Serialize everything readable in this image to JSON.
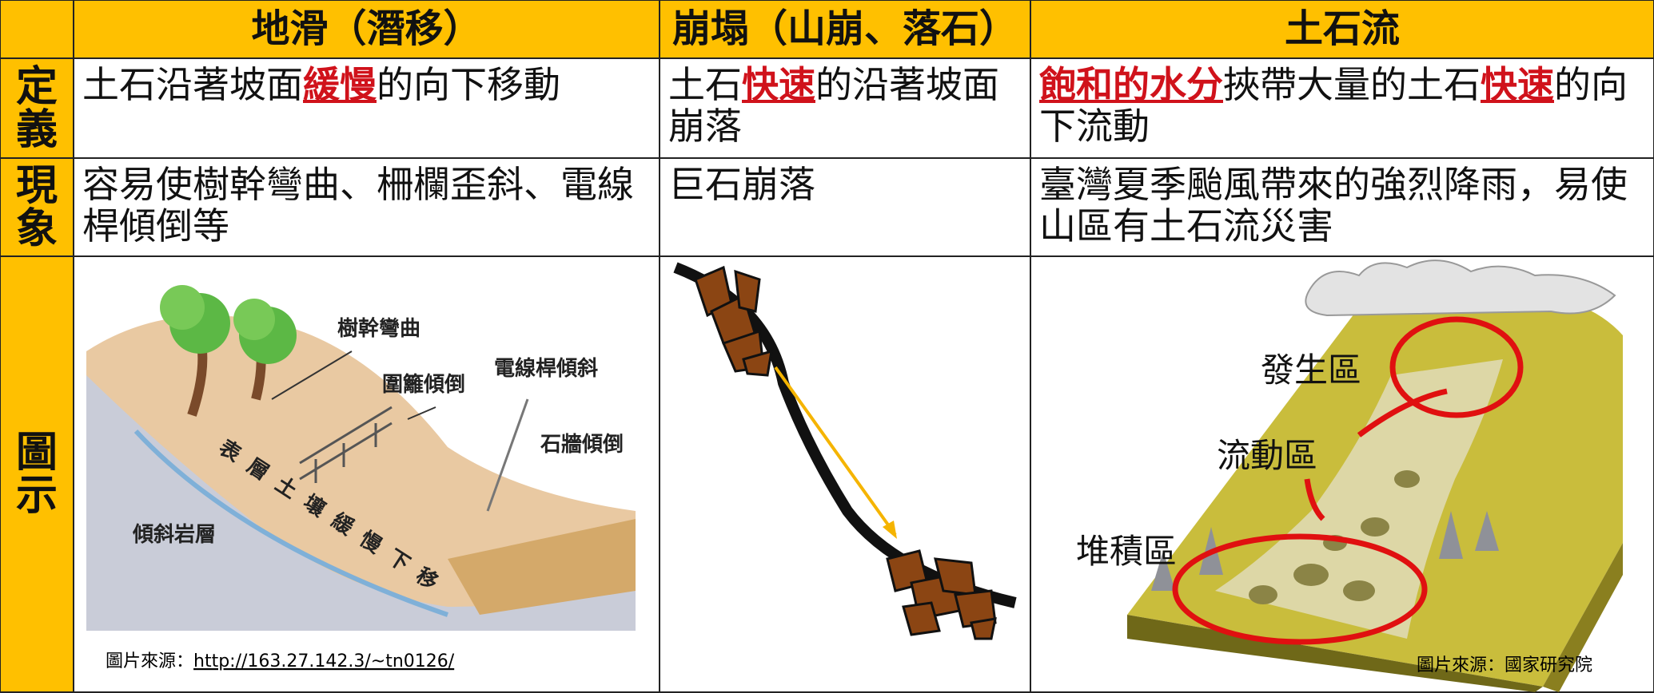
{
  "table": {
    "headers": [
      "地滑（潛移）",
      "崩塌（山崩、落石）",
      "土石流"
    ],
    "rows": [
      {
        "label": "定義",
        "cells": [
          [
            {
              "text": "土石沿著坡面"
            },
            {
              "text": "緩慢",
              "highlight": true
            },
            {
              "text": "的向下移動"
            }
          ],
          [
            {
              "text": "土石"
            },
            {
              "text": "快速",
              "highlight": true
            },
            {
              "text": "的沿著坡面崩落"
            }
          ],
          [
            {
              "text": "飽和的水分",
              "highlight": true
            },
            {
              "text": "挾帶大量的土石"
            },
            {
              "text": "快速",
              "highlight": true
            },
            {
              "text": "的向下流動"
            }
          ]
        ]
      },
      {
        "label": "現象",
        "cells": [
          [
            {
              "text": "容易使樹幹彎曲、柵欄歪斜、電線桿傾倒等"
            }
          ],
          [
            {
              "text": "巨石崩落"
            }
          ],
          [
            {
              "text": "臺灣夏季颱風帶來的強烈降雨，易使山區有土石流災害"
            }
          ]
        ]
      },
      {
        "label": "圖示"
      }
    ]
  },
  "creep_figure": {
    "labels": [
      "樹幹彎曲",
      "圍籬傾倒",
      "電線桿傾斜",
      "石牆傾倒",
      "傾斜岩層",
      "表層土壤緩慢下移"
    ],
    "source_prefix": "圖片來源：",
    "source_url": "http://163.27.142.3/~tn0126/"
  },
  "debris_figure": {
    "labels": [
      "發生區",
      "流動區",
      "堆積區"
    ],
    "source": "圖片來源：國家研究院"
  }
}
